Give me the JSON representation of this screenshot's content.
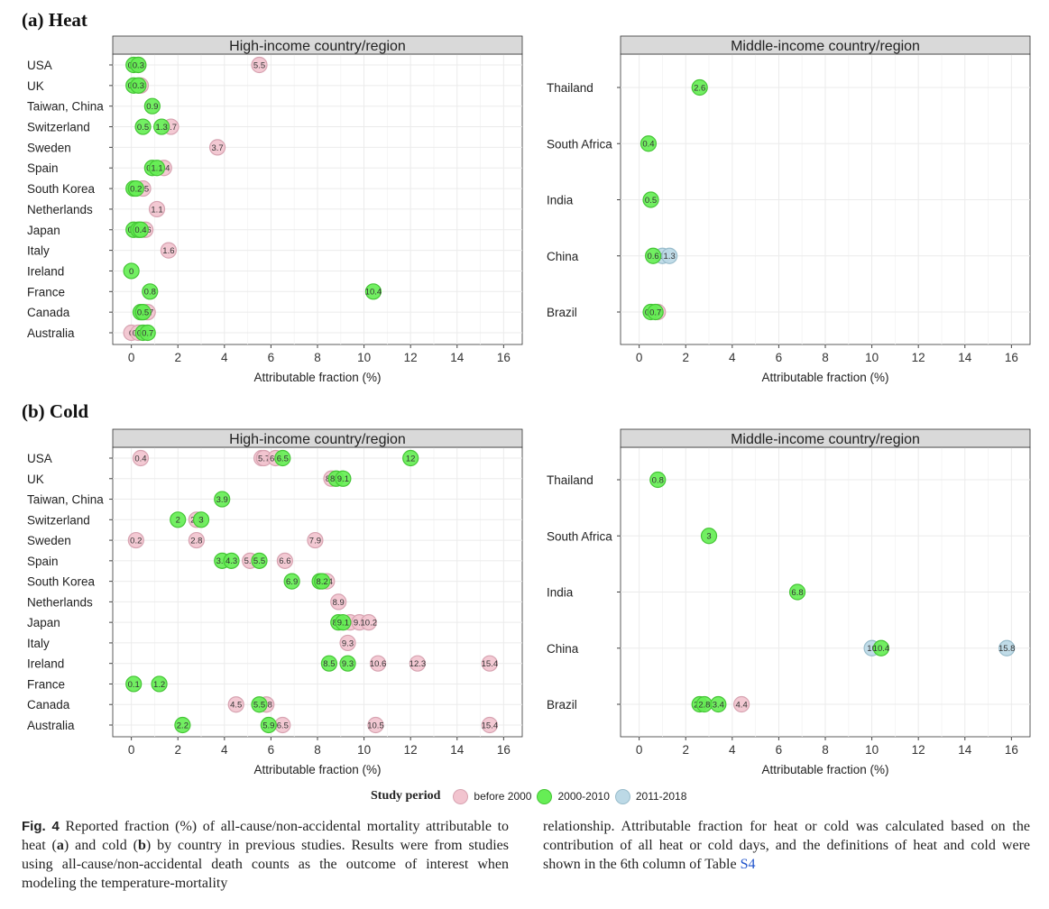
{
  "sections": [
    {
      "label": "(a) Heat"
    },
    {
      "label": "(b) Cold"
    }
  ],
  "colors": {
    "before_2000": "#f2c4cf",
    "p2000_2010": "#66ee55",
    "p2011_2018": "#bcd9e6",
    "strip_bg": "#d9d9d9",
    "grid": "#ebebeb"
  },
  "legend": {
    "title": "Study period",
    "items": [
      {
        "label": "before 2000",
        "key": "before_2000"
      },
      {
        "label": "2000-2010",
        "key": "p2000_2010"
      },
      {
        "label": "2011-2018",
        "key": "p2011_2018"
      }
    ]
  },
  "chart_data": [
    {
      "id": "heat-high",
      "type": "scatter",
      "title": "High-income country/region",
      "xlabel": "Attributable fraction (%)",
      "xlim": [
        -0.8,
        16.8
      ],
      "xticks": [
        0,
        2,
        4,
        6,
        8,
        10,
        12,
        14,
        16
      ],
      "categories": [
        "USA",
        "UK",
        "Taiwan, China",
        "Switzerland",
        "Sweden",
        "Spain",
        "South Korea",
        "Netherlands",
        "Japan",
        "Italy",
        "Ireland",
        "France",
        "Canada",
        "Australia"
      ],
      "points": [
        {
          "cat": "USA",
          "x": 0.3,
          "label": "0.3",
          "period": "before_2000"
        },
        {
          "cat": "USA",
          "x": 5.5,
          "label": "5.5",
          "period": "before_2000"
        },
        {
          "cat": "USA",
          "x": 0.1,
          "label": "0.1",
          "period": "p2000_2010"
        },
        {
          "cat": "USA",
          "x": 0.3,
          "label": "0.3",
          "period": "p2000_2010"
        },
        {
          "cat": "UK",
          "x": 0.4,
          "label": "0.4",
          "period": "before_2000"
        },
        {
          "cat": "UK",
          "x": 0.1,
          "label": "0.1",
          "period": "p2000_2010"
        },
        {
          "cat": "UK",
          "x": 0.3,
          "label": "0.3",
          "period": "p2000_2010"
        },
        {
          "cat": "Taiwan, China",
          "x": 0.9,
          "label": "0.9",
          "period": "p2000_2010"
        },
        {
          "cat": "Switzerland",
          "x": 1.7,
          "label": "1.7",
          "period": "before_2000"
        },
        {
          "cat": "Switzerland",
          "x": 0.5,
          "label": "0.5",
          "period": "p2000_2010"
        },
        {
          "cat": "Switzerland",
          "x": 1.3,
          "label": "1.3",
          "period": "p2000_2010"
        },
        {
          "cat": "Sweden",
          "x": 3.7,
          "label": "3.7",
          "period": "before_2000"
        },
        {
          "cat": "Spain",
          "x": 1.4,
          "label": "1.4",
          "period": "before_2000"
        },
        {
          "cat": "Spain",
          "x": 0.9,
          "label": "0.9",
          "period": "p2000_2010"
        },
        {
          "cat": "Spain",
          "x": 1.1,
          "label": "1.1",
          "period": "p2000_2010"
        },
        {
          "cat": "South Korea",
          "x": 0.5,
          "label": "0.5",
          "period": "before_2000"
        },
        {
          "cat": "South Korea",
          "x": 0.1,
          "label": "0.1",
          "period": "p2000_2010"
        },
        {
          "cat": "South Korea",
          "x": 0.2,
          "label": "0.2",
          "period": "p2000_2010"
        },
        {
          "cat": "Netherlands",
          "x": 1.1,
          "label": "1.1",
          "period": "before_2000"
        },
        {
          "cat": "Japan",
          "x": 0.6,
          "label": "0.6",
          "period": "before_2000"
        },
        {
          "cat": "Japan",
          "x": 0.1,
          "label": "0.1",
          "period": "p2000_2010"
        },
        {
          "cat": "Japan",
          "x": 0.3,
          "label": "0.3",
          "period": "p2000_2010"
        },
        {
          "cat": "Japan",
          "x": 0.4,
          "label": "0.4",
          "period": "p2000_2010"
        },
        {
          "cat": "Italy",
          "x": 1.6,
          "label": "1.6",
          "period": "before_2000"
        },
        {
          "cat": "Ireland",
          "x": 0,
          "label": "0",
          "period": "p2000_2010"
        },
        {
          "cat": "France",
          "x": 0.8,
          "label": "0.8",
          "period": "p2000_2010"
        },
        {
          "cat": "France",
          "x": 10.4,
          "label": "10.4",
          "period": "p2000_2010"
        },
        {
          "cat": "Canada",
          "x": 0.7,
          "label": "0.7",
          "period": "before_2000"
        },
        {
          "cat": "Canada",
          "x": 0.4,
          "label": "0.4",
          "period": "p2000_2010"
        },
        {
          "cat": "Canada",
          "x": 0.5,
          "label": "0.5",
          "period": "p2000_2010"
        },
        {
          "cat": "Australia",
          "x": 0,
          "label": "0",
          "period": "before_2000"
        },
        {
          "cat": "Australia",
          "x": 0.3,
          "label": "0.3",
          "period": "before_2000"
        },
        {
          "cat": "Australia",
          "x": 0.5,
          "label": "0.5",
          "period": "p2000_2010"
        },
        {
          "cat": "Australia",
          "x": 0.7,
          "label": "0.7",
          "period": "p2000_2010"
        }
      ]
    },
    {
      "id": "heat-middle",
      "type": "scatter",
      "title": "Middle-income country/region",
      "xlabel": "Attributable fraction (%)",
      "xlim": [
        -0.8,
        16.8
      ],
      "xticks": [
        0,
        2,
        4,
        6,
        8,
        10,
        12,
        14,
        16
      ],
      "categories": [
        "Thailand",
        "South Africa",
        "India",
        "China",
        "Brazil"
      ],
      "points": [
        {
          "cat": "Thailand",
          "x": 2.6,
          "label": "2.6",
          "period": "p2000_2010"
        },
        {
          "cat": "South Africa",
          "x": 0.4,
          "label": "0.4",
          "period": "p2000_2010"
        },
        {
          "cat": "India",
          "x": 0.5,
          "label": "0.5",
          "period": "p2000_2010"
        },
        {
          "cat": "China",
          "x": 1.0,
          "label": "1",
          "period": "p2011_2018"
        },
        {
          "cat": "China",
          "x": 1.3,
          "label": "1.3",
          "period": "p2011_2018"
        },
        {
          "cat": "China",
          "x": 0.6,
          "label": "0.6",
          "period": "p2000_2010"
        },
        {
          "cat": "Brazil",
          "x": 0.8,
          "label": "0.8",
          "period": "before_2000"
        },
        {
          "cat": "Brazil",
          "x": 0.5,
          "label": "0.5",
          "period": "p2000_2010"
        },
        {
          "cat": "Brazil",
          "x": 0.7,
          "label": "0.7",
          "period": "p2000_2010"
        }
      ]
    },
    {
      "id": "cold-high",
      "type": "scatter",
      "title": "High-income country/region",
      "xlabel": "Attributable fraction (%)",
      "xlim": [
        -0.8,
        16.8
      ],
      "xticks": [
        0,
        2,
        4,
        6,
        8,
        10,
        12,
        14,
        16
      ],
      "categories": [
        "USA",
        "UK",
        "Taiwan, China",
        "Switzerland",
        "Sweden",
        "Spain",
        "South Korea",
        "Netherlands",
        "Japan",
        "Italy",
        "Ireland",
        "France",
        "Canada",
        "Australia"
      ],
      "points": [
        {
          "cat": "USA",
          "x": 0.4,
          "label": "0.4",
          "period": "before_2000"
        },
        {
          "cat": "USA",
          "x": 5.6,
          "label": "5.6",
          "period": "before_2000"
        },
        {
          "cat": "USA",
          "x": 5.7,
          "label": "5.7",
          "period": "before_2000"
        },
        {
          "cat": "USA",
          "x": 6.2,
          "label": "6.2",
          "period": "before_2000"
        },
        {
          "cat": "USA",
          "x": 6.5,
          "label": "6.5",
          "period": "p2000_2010"
        },
        {
          "cat": "USA",
          "x": 12,
          "label": "12",
          "period": "p2000_2010"
        },
        {
          "cat": "UK",
          "x": 8.6,
          "label": "8.6",
          "period": "before_2000"
        },
        {
          "cat": "UK",
          "x": 8.8,
          "label": "8.8",
          "period": "p2000_2010"
        },
        {
          "cat": "UK",
          "x": 9.1,
          "label": "9.1",
          "period": "p2000_2010"
        },
        {
          "cat": "Taiwan, China",
          "x": 3.9,
          "label": "3.9",
          "period": "p2000_2010"
        },
        {
          "cat": "Switzerland",
          "x": 2.8,
          "label": "2.8",
          "period": "before_2000"
        },
        {
          "cat": "Switzerland",
          "x": 2,
          "label": "2",
          "period": "p2000_2010"
        },
        {
          "cat": "Switzerland",
          "x": 3,
          "label": "3",
          "period": "p2000_2010"
        },
        {
          "cat": "Sweden",
          "x": 0.2,
          "label": "0.2",
          "period": "before_2000"
        },
        {
          "cat": "Sweden",
          "x": 2.8,
          "label": "2.8",
          "period": "before_2000"
        },
        {
          "cat": "Sweden",
          "x": 7.9,
          "label": "7.9",
          "period": "before_2000"
        },
        {
          "cat": "Spain",
          "x": 5.1,
          "label": "5.1",
          "period": "before_2000"
        },
        {
          "cat": "Spain",
          "x": 6.6,
          "label": "6.6",
          "period": "before_2000"
        },
        {
          "cat": "Spain",
          "x": 3.9,
          "label": "3.9",
          "period": "p2000_2010"
        },
        {
          "cat": "Spain",
          "x": 4.3,
          "label": "4.3",
          "period": "p2000_2010"
        },
        {
          "cat": "Spain",
          "x": 5.5,
          "label": "5.5",
          "period": "p2000_2010"
        },
        {
          "cat": "South Korea",
          "x": 8.4,
          "label": "8.4",
          "period": "before_2000"
        },
        {
          "cat": "South Korea",
          "x": 6.9,
          "label": "6.9",
          "period": "p2000_2010"
        },
        {
          "cat": "South Korea",
          "x": 8.1,
          "label": "8.1",
          "period": "p2000_2010"
        },
        {
          "cat": "South Korea",
          "x": 8.2,
          "label": "8.2",
          "period": "p2000_2010"
        },
        {
          "cat": "Netherlands",
          "x": 8.9,
          "label": "8.9",
          "period": "before_2000"
        },
        {
          "cat": "Japan",
          "x": 9.4,
          "label": "9.4",
          "period": "before_2000"
        },
        {
          "cat": "Japan",
          "x": 9.8,
          "label": "9.8",
          "period": "before_2000"
        },
        {
          "cat": "Japan",
          "x": 10.2,
          "label": "10.2",
          "period": "before_2000"
        },
        {
          "cat": "Japan",
          "x": 8.9,
          "label": "8.9",
          "period": "p2000_2010"
        },
        {
          "cat": "Japan",
          "x": 9.1,
          "label": "9.1",
          "period": "p2000_2010"
        },
        {
          "cat": "Italy",
          "x": 9.3,
          "label": "9.3",
          "period": "before_2000"
        },
        {
          "cat": "Ireland",
          "x": 10.6,
          "label": "10.6",
          "period": "before_2000"
        },
        {
          "cat": "Ireland",
          "x": 12.3,
          "label": "12.3",
          "period": "before_2000"
        },
        {
          "cat": "Ireland",
          "x": 15.4,
          "label": "15.4",
          "period": "before_2000"
        },
        {
          "cat": "Ireland",
          "x": 8.5,
          "label": "8.5",
          "period": "p2000_2010"
        },
        {
          "cat": "Ireland",
          "x": 9.3,
          "label": "9.3",
          "period": "p2000_2010"
        },
        {
          "cat": "France",
          "x": 0.1,
          "label": "0.1",
          "period": "p2000_2010"
        },
        {
          "cat": "France",
          "x": 1.2,
          "label": "1.2",
          "period": "p2000_2010"
        },
        {
          "cat": "Canada",
          "x": 4.5,
          "label": "4.5",
          "period": "before_2000"
        },
        {
          "cat": "Canada",
          "x": 5.8,
          "label": "5.8",
          "period": "before_2000"
        },
        {
          "cat": "Canada",
          "x": 5.5,
          "label": "5.5",
          "period": "p2000_2010"
        },
        {
          "cat": "Australia",
          "x": 6.5,
          "label": "6.5",
          "period": "before_2000"
        },
        {
          "cat": "Australia",
          "x": 10.5,
          "label": "10.5",
          "period": "before_2000"
        },
        {
          "cat": "Australia",
          "x": 15.4,
          "label": "15.4",
          "period": "before_2000"
        },
        {
          "cat": "Australia",
          "x": 2.2,
          "label": "2.2",
          "period": "p2000_2010"
        },
        {
          "cat": "Australia",
          "x": 5.9,
          "label": "5.9",
          "period": "p2000_2010"
        }
      ]
    },
    {
      "id": "cold-middle",
      "type": "scatter",
      "title": "Middle-income country/region",
      "xlabel": "Attributable fraction (%)",
      "xlim": [
        -0.8,
        16.8
      ],
      "xticks": [
        0,
        2,
        4,
        6,
        8,
        10,
        12,
        14,
        16
      ],
      "categories": [
        "Thailand",
        "South Africa",
        "India",
        "China",
        "Brazil"
      ],
      "points": [
        {
          "cat": "Thailand",
          "x": 0.8,
          "label": "0.8",
          "period": "p2000_2010"
        },
        {
          "cat": "South Africa",
          "x": 3,
          "label": "3",
          "period": "p2000_2010"
        },
        {
          "cat": "India",
          "x": 6.8,
          "label": "6.8",
          "period": "p2000_2010"
        },
        {
          "cat": "China",
          "x": 10,
          "label": "10",
          "period": "p2011_2018"
        },
        {
          "cat": "China",
          "x": 15.8,
          "label": "15.8",
          "period": "p2011_2018"
        },
        {
          "cat": "China",
          "x": 10.4,
          "label": "10.4",
          "period": "p2000_2010"
        },
        {
          "cat": "Brazil",
          "x": 4.4,
          "label": "4.4",
          "period": "before_2000"
        },
        {
          "cat": "Brazil",
          "x": 2.6,
          "label": "2.6",
          "period": "p2000_2010"
        },
        {
          "cat": "Brazil",
          "x": 2.8,
          "label": "2.8",
          "period": "p2000_2010"
        },
        {
          "cat": "Brazil",
          "x": 3.4,
          "label": "3.4",
          "period": "p2000_2010"
        }
      ]
    }
  ],
  "caption": {
    "fig_label": "Fig. 4",
    "left_pre": "Reported fraction (%) of all-cause/non-accidental mortality attributable to heat (",
    "left_a": "a",
    "left_mid": ") and cold (",
    "left_b": "b",
    "left_post": ") by country in previous studies. Results were from studies using all-cause/non-accidental death counts as the outcome of interest when modeling the temperature-mortality",
    "right_text": "relationship. Attributable fraction for heat or cold was calculated based on the contribution of all heat or cold days, and the definitions of heat and cold were shown in the 6th column of Table",
    "right_link": "S4"
  }
}
